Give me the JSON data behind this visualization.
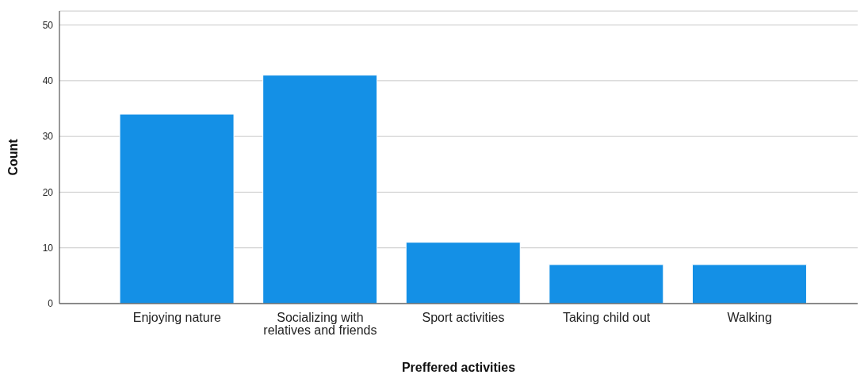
{
  "chart_data": {
    "type": "bar",
    "xlabel": "Preffered activities",
    "ylabel": "Count",
    "categories": [
      "Enjoying nature",
      "Socializing with relatives and friends",
      "Sport activities",
      "Taking child out",
      "Walking"
    ],
    "values": [
      34,
      41,
      11,
      7,
      7
    ],
    "color": "#1490e6",
    "ylim": [
      0,
      52.5
    ],
    "yticks": [
      0,
      10,
      20,
      30,
      40,
      50
    ],
    "grid": "y"
  }
}
